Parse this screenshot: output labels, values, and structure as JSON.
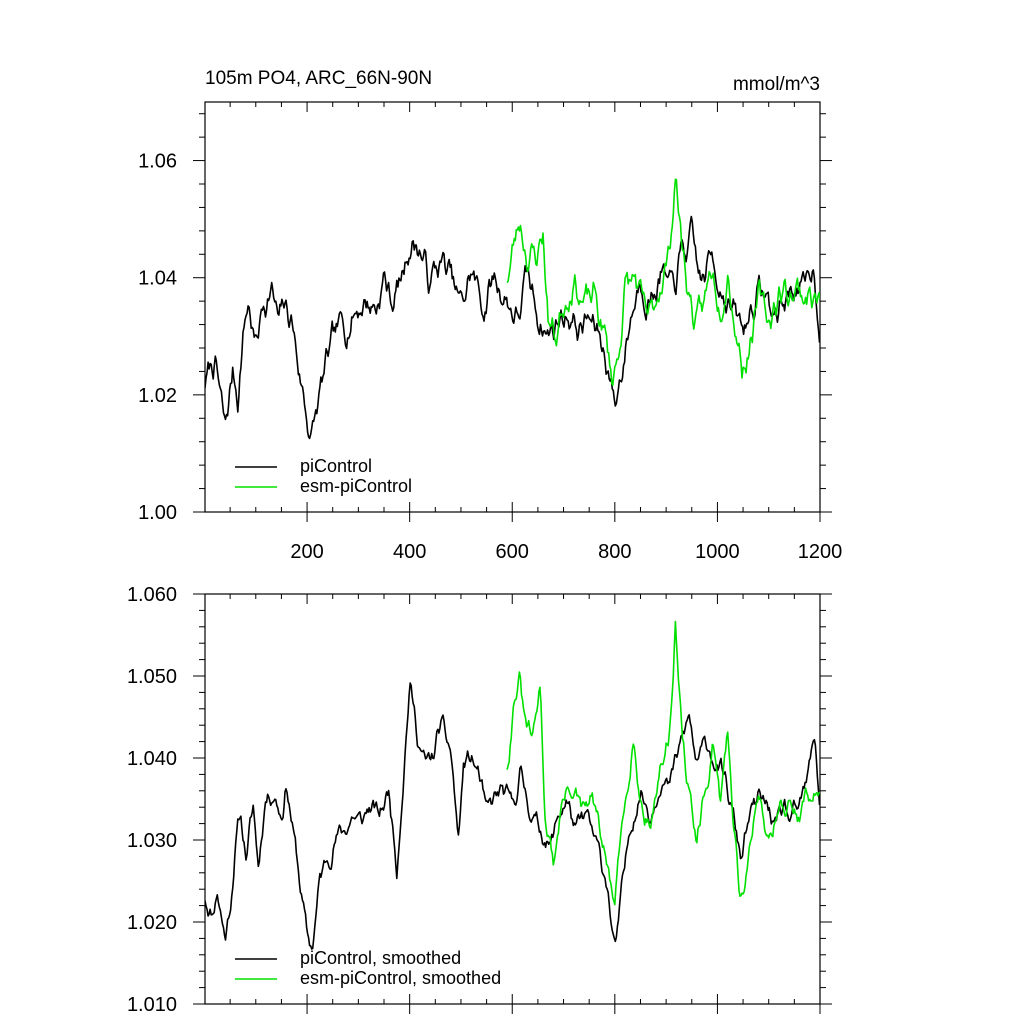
{
  "chart_data": [
    {
      "type": "line",
      "title_left": "105m PO4, ARC_66N-90N",
      "title_right": "mmol/m^3",
      "xlabel": "",
      "ylabel": "",
      "xlim": [
        1,
        1200
      ],
      "ylim": [
        1.0,
        1.07
      ],
      "x_ticks": [
        200,
        400,
        600,
        800,
        1000,
        1200
      ],
      "x_tick_labels": [
        "200",
        "400",
        "600",
        "800",
        "1000",
        "1200"
      ],
      "y_ticks": [
        1.0,
        1.02,
        1.04,
        1.06
      ],
      "y_tick_labels": [
        "1.00",
        "1.02",
        "1.04",
        "1.06"
      ],
      "legend_position": "bottom-left",
      "series": [
        {
          "name": "piControl",
          "color": "#000000",
          "x_start": 1,
          "x_end": 1200,
          "anchors": [
            [
              1,
              1.022
            ],
            [
              20,
              1.026
            ],
            [
              40,
              1.014
            ],
            [
              55,
              1.024
            ],
            [
              65,
              1.02
            ],
            [
              75,
              1.03
            ],
            [
              85,
              1.036
            ],
            [
              100,
              1.028
            ],
            [
              115,
              1.036
            ],
            [
              130,
              1.038
            ],
            [
              145,
              1.032
            ],
            [
              155,
              1.035
            ],
            [
              170,
              1.033
            ],
            [
              185,
              1.024
            ],
            [
              200,
              1.016
            ],
            [
              210,
              1.013
            ],
            [
              225,
              1.02
            ],
            [
              240,
              1.026
            ],
            [
              260,
              1.031
            ],
            [
              285,
              1.033
            ],
            [
              310,
              1.036
            ],
            [
              335,
              1.035
            ],
            [
              350,
              1.04
            ],
            [
              365,
              1.036
            ],
            [
              385,
              1.04
            ],
            [
              400,
              1.046
            ],
            [
              420,
              1.045
            ],
            [
              440,
              1.039
            ],
            [
              460,
              1.043
            ],
            [
              480,
              1.04
            ],
            [
              500,
              1.035
            ],
            [
              520,
              1.041
            ],
            [
              545,
              1.035
            ],
            [
              565,
              1.04
            ],
            [
              590,
              1.036
            ],
            [
              610,
              1.033
            ],
            [
              630,
              1.04
            ],
            [
              650,
              1.034
            ],
            [
              670,
              1.03
            ],
            [
              690,
              1.033
            ],
            [
              710,
              1.034
            ],
            [
              730,
              1.031
            ],
            [
              750,
              1.033
            ],
            [
              770,
              1.03
            ],
            [
              790,
              1.024
            ],
            [
              800,
              1.018
            ],
            [
              815,
              1.025
            ],
            [
              830,
              1.033
            ],
            [
              850,
              1.04
            ],
            [
              870,
              1.036
            ],
            [
              890,
              1.041
            ],
            [
              910,
              1.037
            ],
            [
              930,
              1.044
            ],
            [
              950,
              1.046
            ],
            [
              970,
              1.039
            ],
            [
              990,
              1.044
            ],
            [
              1010,
              1.038
            ],
            [
              1030,
              1.034
            ],
            [
              1050,
              1.031
            ],
            [
              1070,
              1.036
            ],
            [
              1090,
              1.038
            ],
            [
              1110,
              1.033
            ],
            [
              1130,
              1.036
            ],
            [
              1150,
              1.039
            ],
            [
              1170,
              1.037
            ],
            [
              1185,
              1.043
            ],
            [
              1200,
              1.032
            ]
          ],
          "noise_amplitude": 0.0045,
          "seed": 7
        },
        {
          "name": "esm-piControl",
          "color": "#00e000",
          "x_start": 590,
          "x_end": 1200,
          "anchors": [
            [
              590,
              1.04
            ],
            [
              605,
              1.046
            ],
            [
              615,
              1.05
            ],
            [
              630,
              1.044
            ],
            [
              645,
              1.043
            ],
            [
              660,
              1.048
            ],
            [
              670,
              1.033
            ],
            [
              685,
              1.03
            ],
            [
              700,
              1.036
            ],
            [
              720,
              1.04
            ],
            [
              740,
              1.035
            ],
            [
              760,
              1.037
            ],
            [
              780,
              1.03
            ],
            [
              795,
              1.023
            ],
            [
              805,
              1.026
            ],
            [
              820,
              1.038
            ],
            [
              840,
              1.04
            ],
            [
              855,
              1.034
            ],
            [
              870,
              1.033
            ],
            [
              890,
              1.04
            ],
            [
              905,
              1.043
            ],
            [
              918,
              1.058
            ],
            [
              930,
              1.046
            ],
            [
              945,
              1.037
            ],
            [
              960,
              1.031
            ],
            [
              975,
              1.036
            ],
            [
              990,
              1.042
            ],
            [
              1005,
              1.036
            ],
            [
              1020,
              1.042
            ],
            [
              1035,
              1.032
            ],
            [
              1048,
              1.025
            ],
            [
              1060,
              1.028
            ],
            [
              1080,
              1.036
            ],
            [
              1100,
              1.033
            ],
            [
              1120,
              1.037
            ],
            [
              1150,
              1.038
            ],
            [
              1180,
              1.037
            ],
            [
              1200,
              1.036
            ]
          ],
          "noise_amplitude": 0.0048,
          "seed": 23
        }
      ]
    },
    {
      "type": "line",
      "title_left": "",
      "title_right": "",
      "xlabel": "",
      "ylabel": "",
      "xlim": [
        1,
        1200
      ],
      "ylim": [
        1.01,
        1.06
      ],
      "x_ticks": [
        200,
        400,
        600,
        800,
        1000,
        1200
      ],
      "x_tick_labels": [],
      "y_ticks": [
        1.01,
        1.02,
        1.03,
        1.04,
        1.05,
        1.06
      ],
      "y_tick_labels": [
        "1.010",
        "1.020",
        "1.030",
        "1.040",
        "1.050",
        "1.060"
      ],
      "legend_position": "bottom-left",
      "series": [
        {
          "name": "piControl, smoothed",
          "color": "#000000",
          "x_start": 1,
          "x_end": 1200,
          "anchors": [
            [
              1,
              1.023
            ],
            [
              15,
              1.021
            ],
            [
              25,
              1.024
            ],
            [
              40,
              1.018
            ],
            [
              50,
              1.022
            ],
            [
              60,
              1.029
            ],
            [
              70,
              1.033
            ],
            [
              82,
              1.028
            ],
            [
              95,
              1.034
            ],
            [
              105,
              1.027
            ],
            [
              118,
              1.035
            ],
            [
              135,
              1.036
            ],
            [
              150,
              1.033
            ],
            [
              160,
              1.037
            ],
            [
              175,
              1.03
            ],
            [
              190,
              1.023
            ],
            [
              200,
              1.018
            ],
            [
              210,
              1.017
            ],
            [
              225,
              1.025
            ],
            [
              240,
              1.028
            ],
            [
              255,
              1.03
            ],
            [
              270,
              1.031
            ],
            [
              290,
              1.033
            ],
            [
              305,
              1.032
            ],
            [
              320,
              1.034
            ],
            [
              340,
              1.033
            ],
            [
              360,
              1.036
            ],
            [
              375,
              1.027
            ],
            [
              390,
              1.04
            ],
            [
              400,
              1.049
            ],
            [
              415,
              1.043
            ],
            [
              430,
              1.039
            ],
            [
              445,
              1.04
            ],
            [
              460,
              1.044
            ],
            [
              480,
              1.041
            ],
            [
              495,
              1.03
            ],
            [
              505,
              1.039
            ],
            [
              520,
              1.04
            ],
            [
              535,
              1.038
            ],
            [
              550,
              1.033
            ],
            [
              565,
              1.035
            ],
            [
              580,
              1.036
            ],
            [
              600,
              1.034
            ],
            [
              615,
              1.038
            ],
            [
              630,
              1.035
            ],
            [
              645,
              1.032
            ],
            [
              660,
              1.031
            ],
            [
              675,
              1.029
            ],
            [
              690,
              1.033
            ],
            [
              705,
              1.035
            ],
            [
              725,
              1.031
            ],
            [
              745,
              1.033
            ],
            [
              765,
              1.029
            ],
            [
              785,
              1.025
            ],
            [
              800,
              1.016
            ],
            [
              815,
              1.024
            ],
            [
              830,
              1.032
            ],
            [
              850,
              1.036
            ],
            [
              870,
              1.033
            ],
            [
              890,
              1.038
            ],
            [
              905,
              1.036
            ],
            [
              925,
              1.041
            ],
            [
              945,
              1.045
            ],
            [
              960,
              1.039
            ],
            [
              980,
              1.042
            ],
            [
              1000,
              1.039
            ],
            [
              1015,
              1.037
            ],
            [
              1030,
              1.033
            ],
            [
              1045,
              1.028
            ],
            [
              1060,
              1.032
            ],
            [
              1080,
              1.035
            ],
            [
              1100,
              1.034
            ],
            [
              1115,
              1.031
            ],
            [
              1130,
              1.034
            ],
            [
              1145,
              1.032
            ],
            [
              1160,
              1.034
            ],
            [
              1175,
              1.037
            ],
            [
              1190,
              1.043
            ],
            [
              1200,
              1.034
            ]
          ],
          "noise_amplitude": 0.0022,
          "seed": 11
        },
        {
          "name": "esm-piControl, smoothed",
          "color": "#00e000",
          "x_start": 590,
          "x_end": 1200,
          "anchors": [
            [
              590,
              1.039
            ],
            [
              605,
              1.048
            ],
            [
              615,
              1.049
            ],
            [
              625,
              1.044
            ],
            [
              640,
              1.042
            ],
            [
              655,
              1.049
            ],
            [
              665,
              1.032
            ],
            [
              680,
              1.027
            ],
            [
              695,
              1.034
            ],
            [
              715,
              1.037
            ],
            [
              735,
              1.033
            ],
            [
              755,
              1.035
            ],
            [
              775,
              1.03
            ],
            [
              790,
              1.025
            ],
            [
              800,
              1.022
            ],
            [
              815,
              1.032
            ],
            [
              835,
              1.043
            ],
            [
              850,
              1.035
            ],
            [
              870,
              1.032
            ],
            [
              890,
              1.039
            ],
            [
              905,
              1.042
            ],
            [
              918,
              1.057
            ],
            [
              930,
              1.043
            ],
            [
              945,
              1.036
            ],
            [
              960,
              1.029
            ],
            [
              975,
              1.035
            ],
            [
              990,
              1.041
            ],
            [
              1005,
              1.034
            ],
            [
              1020,
              1.043
            ],
            [
              1035,
              1.03
            ],
            [
              1045,
              1.023
            ],
            [
              1060,
              1.027
            ],
            [
              1080,
              1.036
            ],
            [
              1100,
              1.03
            ],
            [
              1120,
              1.035
            ],
            [
              1140,
              1.034
            ],
            [
              1160,
              1.033
            ],
            [
              1180,
              1.036
            ],
            [
              1200,
              1.035
            ]
          ],
          "noise_amplitude": 0.0024,
          "seed": 31
        }
      ]
    }
  ]
}
